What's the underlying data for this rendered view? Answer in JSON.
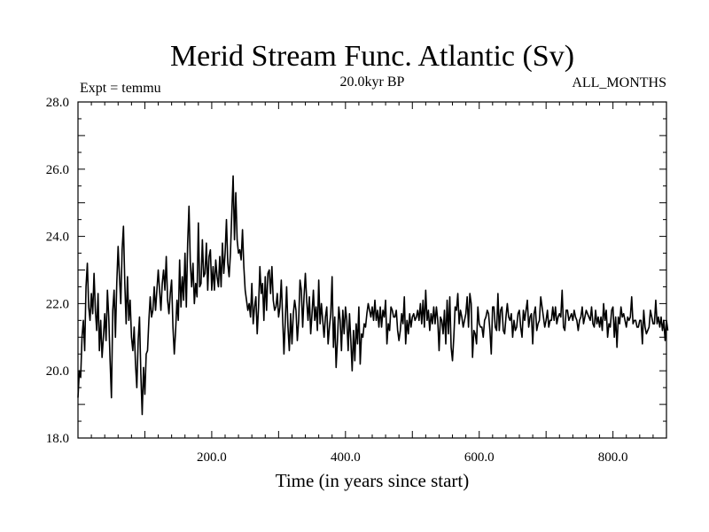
{
  "chart_data": {
    "type": "line",
    "title": "Merid Stream Func. Atlantic (Sv)",
    "subtitle": "20.0kyr BP",
    "left_note": "Expt = temmu",
    "right_note": "ALL_MONTHS",
    "xlabel": "Time (in years since start)",
    "ylabel": "",
    "xlim": [
      0,
      880
    ],
    "ylim": [
      18.0,
      28.0
    ],
    "x_ticks": [
      {
        "value": 200,
        "label": "200.0"
      },
      {
        "value": 400,
        "label": "400.0"
      },
      {
        "value": 600,
        "label": "600.0"
      },
      {
        "value": 800,
        "label": "800.0"
      }
    ],
    "y_ticks": [
      {
        "value": 18,
        "label": "18.0"
      },
      {
        "value": 20,
        "label": "20.0"
      },
      {
        "value": 22,
        "label": "22.0"
      },
      {
        "value": 24,
        "label": "24.0"
      },
      {
        "value": 26,
        "label": "26.0"
      },
      {
        "value": 28,
        "label": "28.0"
      }
    ],
    "series": [
      {
        "name": "Merid Stream Func. Atlantic",
        "x_start": 0,
        "x_step": 2,
        "values": [
          19.2,
          20.0,
          19.8,
          21.0,
          21.5,
          20.6,
          22.5,
          23.2,
          21.9,
          21.5,
          22.3,
          21.7,
          22.9,
          21.8,
          21.2,
          22.3,
          20.6,
          21.5,
          20.4,
          21.0,
          21.7,
          20.9,
          22.4,
          21.6,
          20.3,
          19.2,
          21.8,
          22.4,
          21.0,
          22.6,
          23.7,
          22.8,
          22.0,
          23.6,
          24.3,
          22.6,
          21.4,
          22.8,
          21.5,
          22.1,
          21.0,
          20.6,
          21.3,
          20.2,
          19.5,
          20.9,
          21.6,
          19.9,
          18.7,
          20.1,
          19.3,
          20.5,
          20.6,
          21.5,
          22.2,
          21.6,
          21.8,
          22.5,
          21.8,
          22.4,
          23.0,
          22.4,
          21.8,
          22.6,
          23.0,
          22.4,
          23.4,
          22.1,
          21.7,
          22.3,
          22.7,
          21.3,
          20.5,
          21.2,
          22.1,
          21.5,
          23.3,
          21.9,
          22.8,
          22.1,
          23.5,
          21.9,
          23.8,
          24.9,
          23.2,
          22.5,
          23.2,
          22.0,
          22.6,
          22.2,
          24.4,
          22.5,
          22.6,
          23.9,
          22.8,
          22.9,
          23.8,
          22.4,
          23.4,
          23.6,
          22.4,
          23.1,
          22.4,
          23.3,
          22.8,
          22.5,
          23.4,
          22.5,
          23.8,
          22.9,
          23.5,
          24.5,
          23.2,
          22.8,
          23.5,
          24.7,
          25.8,
          23.9,
          25.3,
          23.9,
          23.5,
          23.6,
          23.3,
          24.2,
          23.1,
          22.4,
          22.1,
          21.8,
          22.0,
          21.6,
          22.6,
          21.4,
          21.9,
          22.2,
          21.1,
          21.9,
          23.1,
          22.3,
          22.6,
          21.5,
          22.8,
          21.8,
          22.9,
          23.0,
          22.3,
          23.1,
          22.1,
          21.8,
          21.9,
          22.3,
          21.6,
          21.9,
          22.7,
          21.6,
          20.5,
          21.5,
          22.5,
          21.3,
          20.6,
          21.7,
          20.8,
          21.7,
          22.1,
          21.8,
          20.9,
          21.5,
          22.7,
          22.4,
          21.3,
          22.2,
          22.9,
          22.1,
          21.5,
          22.2,
          21.1,
          21.7,
          22.4,
          21.5,
          21.9,
          21.2,
          22.7,
          21.4,
          22.0,
          21.5,
          21.0,
          21.6,
          21.9,
          20.8,
          21.3,
          21.7,
          22.8,
          20.7,
          21.6,
          20.1,
          20.9,
          21.9,
          21.5,
          20.6,
          21.8,
          21.1,
          21.9,
          21.5,
          20.6,
          21.7,
          20.9,
          20.0,
          21.2,
          20.3,
          21.4,
          20.8,
          21.9,
          20.2,
          21.1,
          21.0,
          21.4,
          21.3,
          21.7,
          22.0,
          21.8,
          21.6,
          21.9,
          21.5,
          22.1,
          21.5,
          21.8,
          21.3,
          21.9,
          21.3,
          21.8,
          21.6,
          22.1,
          20.8,
          21.4,
          21.2,
          21.9,
          21.8,
          21.6,
          21.6,
          21.8,
          21.2,
          20.9,
          21.2,
          21.7,
          21.4,
          22.2,
          20.8,
          21.5,
          21.1,
          21.7,
          21.3,
          21.6,
          21.7,
          21.5,
          21.6,
          21.8,
          21.5,
          22.0,
          21.4,
          22.1,
          21.3,
          22.4,
          21.5,
          21.8,
          21.2,
          21.7,
          21.4,
          21.9,
          21.4,
          21.9,
          21.5,
          20.6,
          21.6,
          21.5,
          21.1,
          21.8,
          20.8,
          22.1,
          21.1,
          22.2,
          20.7,
          20.3,
          21.0,
          21.9,
          21.8,
          22.3,
          21.4,
          21.8,
          21.6,
          21.3,
          21.5,
          21.7,
          22.2,
          21.3,
          22.3,
          22.0,
          20.4,
          21.2,
          21.1,
          20.8,
          21.9,
          21.4,
          21.3,
          21.3,
          21.0,
          21.5,
          21.6,
          21.8,
          21.7,
          21.2,
          20.5,
          21.9,
          21.9,
          21.3,
          21.2,
          22.3,
          21.2,
          21.8,
          21.9,
          21.2,
          21.1,
          21.6,
          22.0,
          21.6,
          21.5,
          21.7,
          21.0,
          21.5,
          21.2,
          21.3,
          21.7,
          21.8,
          21.3,
          21.0,
          21.8,
          21.5,
          21.8,
          22.1,
          21.3,
          21.6,
          21.7,
          20.8,
          21.7,
          21.9,
          21.2,
          21.4,
          21.5,
          22.2,
          21.9,
          21.6,
          21.3,
          21.5,
          21.8,
          21.3,
          21.5,
          21.5,
          21.9,
          21.5,
          21.9,
          21.4,
          21.6,
          21.7,
          21.6,
          22.4,
          21.3,
          21.2,
          21.8,
          21.8,
          21.5,
          21.6,
          21.7,
          21.5,
          21.8,
          21.6,
          21.5,
          21.2,
          21.5,
          21.6,
          21.9,
          21.4,
          21.6,
          21.8,
          21.7,
          21.6,
          21.5,
          21.9,
          21.4,
          21.3,
          21.8,
          21.4,
          21.6,
          21.3,
          21.6,
          21.2,
          22.0,
          21.5,
          21.8,
          21.0,
          21.4,
          21.3,
          21.8,
          21.9,
          21.0,
          21.6,
          20.7,
          21.6,
          21.4,
          21.9,
          21.6,
          21.7,
          21.5,
          21.3,
          21.6,
          21.5,
          21.6,
          22.2,
          21.4,
          21.5,
          21.5,
          21.3,
          21.3,
          21.5,
          21.5,
          20.8,
          21.8,
          21.3,
          21.1,
          21.2,
          21.3,
          21.8,
          21.6,
          21.4,
          21.4,
          22.1,
          21.4,
          21.6,
          21.3,
          21.6,
          21.2,
          21.5,
          20.9,
          21.5,
          21.2
        ]
      }
    ]
  }
}
